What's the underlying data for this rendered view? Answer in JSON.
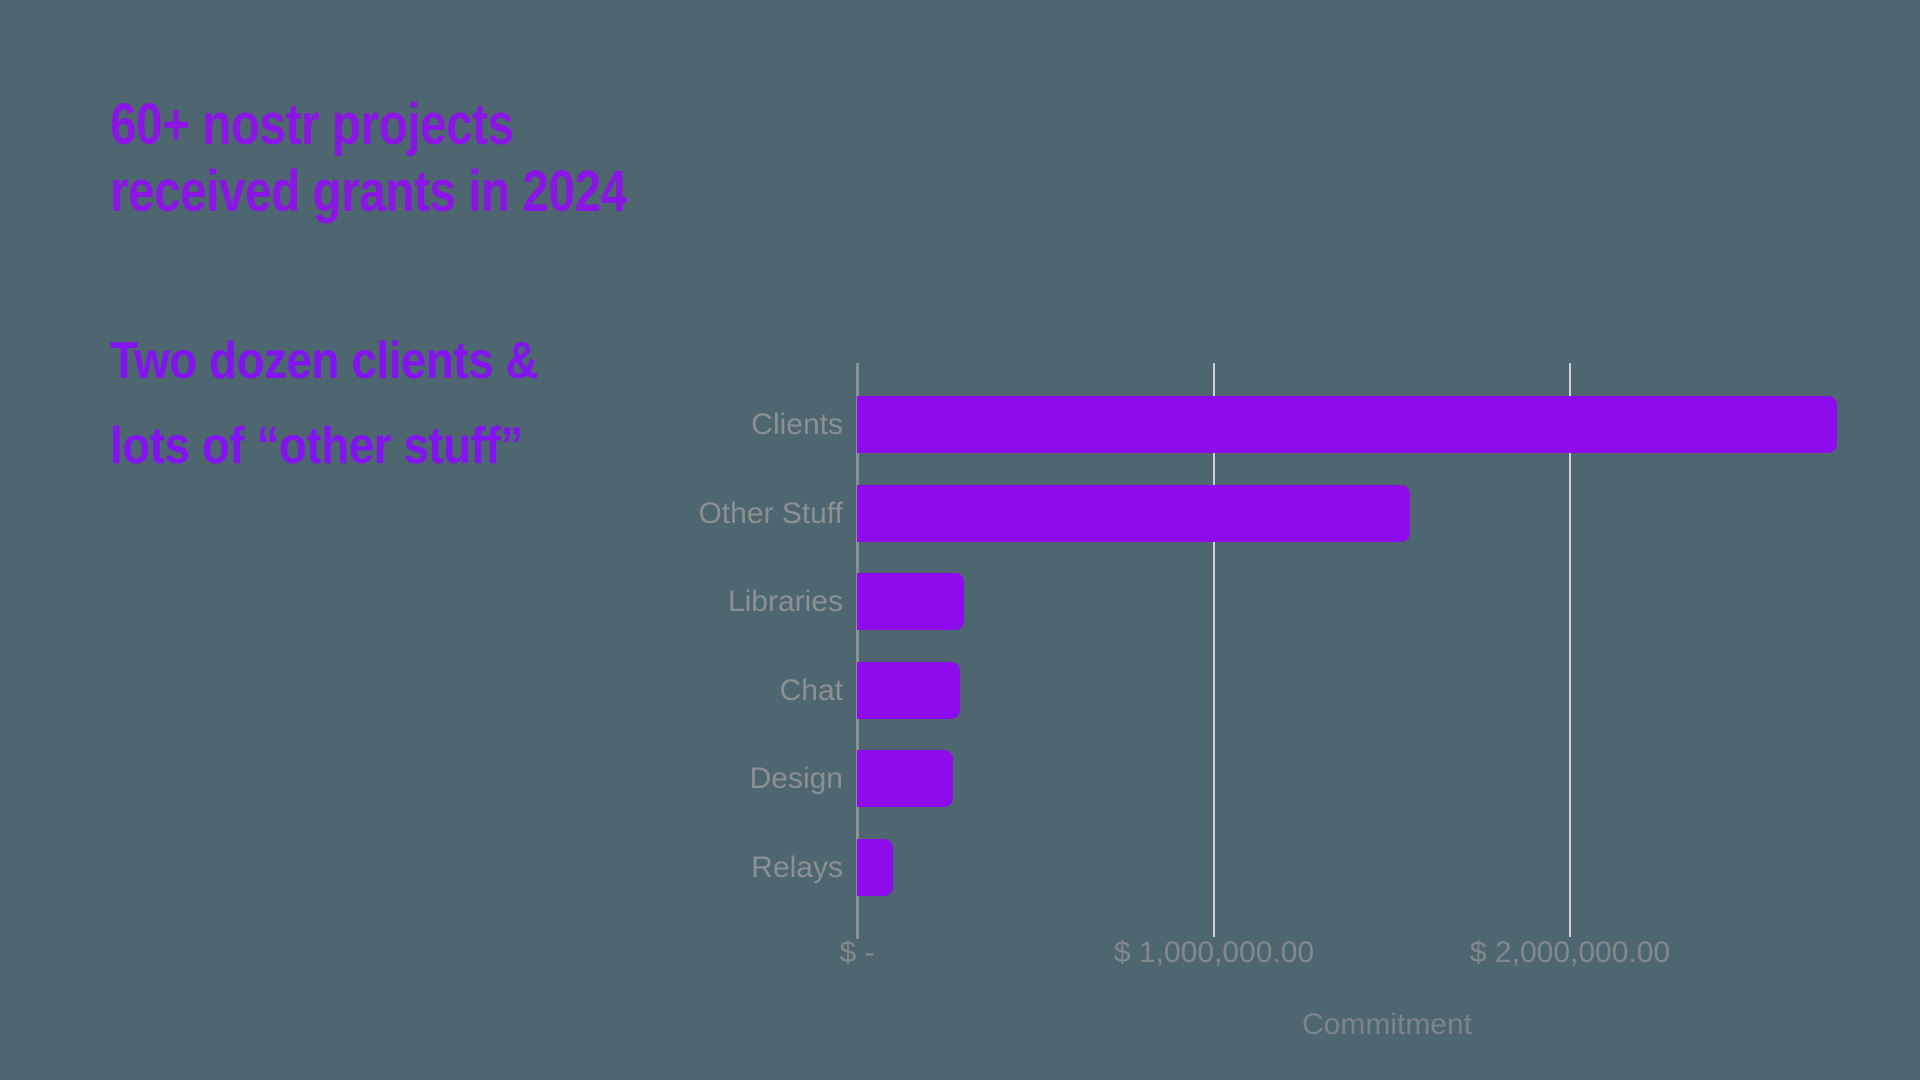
{
  "background_color": "#4d6670",
  "title": {
    "line1": "60+ nostr projects",
    "line2": "received grants in 2024",
    "color": "#8a15e4"
  },
  "subtitle": {
    "line1": "Two dozen clients &",
    "line2": "lots of “other stuff”",
    "color": "#8313f0"
  },
  "chart_data": {
    "type": "bar",
    "orientation": "horizontal",
    "categories": [
      "Clients",
      "Other Stuff",
      "Libraries",
      "Chat",
      "Design",
      "Relays"
    ],
    "values": [
      2750000,
      1550000,
      300000,
      290000,
      270000,
      100000
    ],
    "xlabel": "Commitment",
    "xlim": [
      0,
      3000000
    ],
    "x_ticks": [
      {
        "value": 0,
        "label": "$ -"
      },
      {
        "value": 1000000,
        "label": "$ 1,000,000.00"
      },
      {
        "value": 2000000,
        "label": "$ 2,000,000.00"
      }
    ],
    "grid": true,
    "legend": false,
    "bar_color": "#8e0bee",
    "gridline_color": "#ccd2d4",
    "axis_line_color": "#8c9194",
    "category_label_color": "#8d9093",
    "tick_label_color": "#85888b",
    "xlabel_color": "#7e8489"
  }
}
